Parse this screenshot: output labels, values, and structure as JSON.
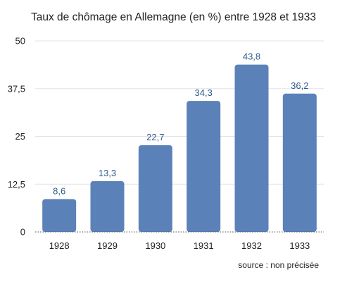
{
  "chart_data": {
    "type": "bar",
    "title": "Taux de chômage en Allemagne (en %) entre 1928 et 1933",
    "categories": [
      "1928",
      "1929",
      "1930",
      "1931",
      "1932",
      "1933"
    ],
    "values": [
      8.6,
      13.3,
      22.7,
      34.3,
      43.8,
      36.2
    ],
    "data_labels": [
      "8,6",
      "13,3",
      "22,7",
      "34,3",
      "43,8",
      "36,2"
    ],
    "yticks": [
      "0",
      "12,5",
      "25",
      "37,5",
      "50"
    ],
    "ytick_values": [
      0,
      12.5,
      25,
      37.5,
      50
    ],
    "ylim": [
      0,
      50
    ],
    "xlabel": "",
    "ylabel": "",
    "grid": true,
    "bar_color": "#5b82b8",
    "label_color": "#2f5d8a",
    "grid_color": "#e3e3e3",
    "source": "source : non précisée"
  }
}
